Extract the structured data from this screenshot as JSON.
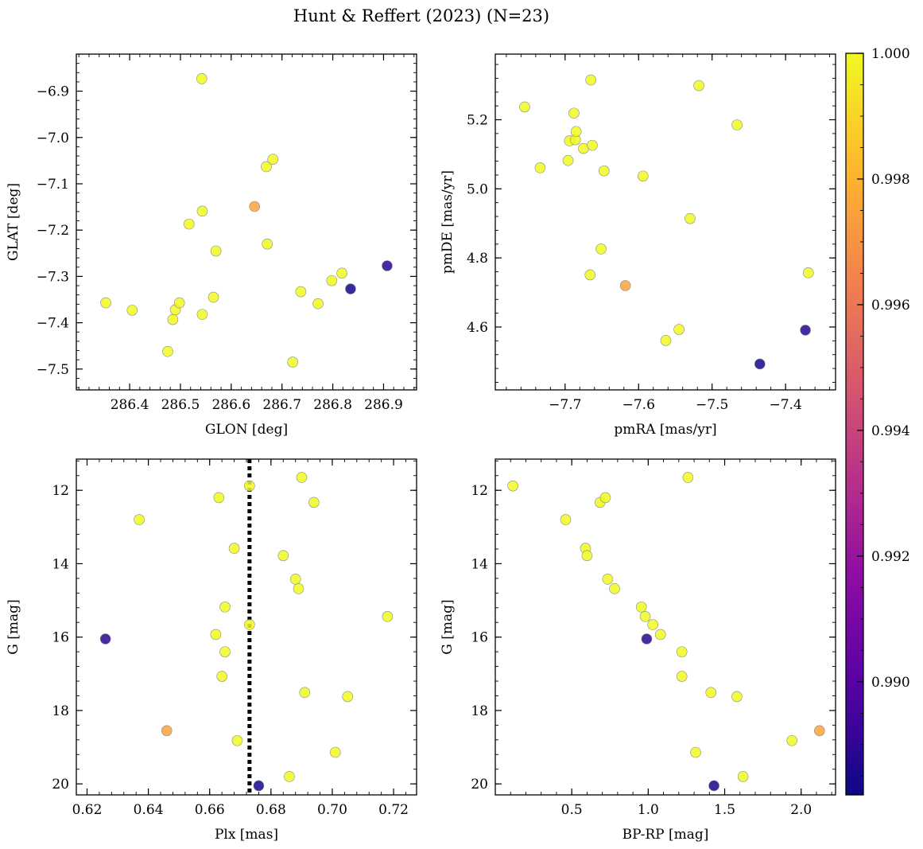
{
  "figure_title": "Hunt & Reffert (2023) (N=23)",
  "colorbar": {
    "range": [
      0.9882,
      1.0
    ],
    "ticks": [
      0.99,
      0.992,
      0.994,
      0.996,
      0.998,
      1.0
    ],
    "tick_labels": [
      "0.990",
      "0.992",
      "0.994",
      "0.996",
      "0.998",
      "1.000"
    ],
    "colormap": "plasma"
  },
  "chart_data": [
    {
      "id": "glon-glat",
      "type": "scatter",
      "xlabel": "GLON [deg]",
      "ylabel": "GLAT [deg]",
      "xlim": [
        286.295,
        286.965
      ],
      "ylim": [
        -7.545,
        -6.82
      ],
      "inverted_y": false,
      "xticks": [
        286.4,
        286.5,
        286.6,
        286.7,
        286.8,
        286.9
      ],
      "xtick_labels": [
        "286.4",
        "286.5",
        "286.6",
        "286.7",
        "286.8",
        "286.9"
      ],
      "xminor": 0.02,
      "yticks": [
        -7.5,
        -7.4,
        -7.3,
        -7.2,
        -7.1,
        -7.0,
        -6.9
      ],
      "ytick_labels": [
        "−7.5",
        "−7.4",
        "−7.3",
        "−7.2",
        "−7.1",
        "−7.0",
        "−6.9"
      ],
      "yminor": 0.02,
      "x": [
        286.353,
        286.405,
        286.475,
        286.485,
        286.49,
        286.498,
        286.517,
        286.542,
        286.543,
        286.543,
        286.565,
        286.57,
        286.646,
        286.669,
        286.671,
        286.682,
        286.721,
        286.737,
        286.771,
        286.798,
        286.818,
        286.835,
        286.907
      ],
      "y": [
        -7.357,
        -7.373,
        -7.462,
        -7.393,
        -7.372,
        -7.357,
        -7.187,
        -6.873,
        -7.159,
        -7.382,
        -7.345,
        -7.245,
        -7.149,
        -7.063,
        -7.23,
        -7.047,
        -7.485,
        -7.333,
        -7.359,
        -7.309,
        -7.293,
        -7.327,
        -7.277
      ],
      "prob": [
        1.0,
        1.0,
        1.0,
        1.0,
        1.0,
        1.0,
        1.0,
        1.0,
        1.0,
        1.0,
        1.0,
        1.0,
        0.9975,
        1.0,
        1.0,
        1.0,
        1.0,
        1.0,
        1.0,
        1.0,
        1.0,
        0.9884,
        0.9888
      ]
    },
    {
      "id": "pmra-pmde",
      "type": "scatter",
      "xlabel": "pmRA [mas/yr]",
      "ylabel": "pmDE [mas/yr]",
      "xlim": [
        -7.795,
        -7.332
      ],
      "ylim": [
        4.418,
        5.39
      ],
      "inverted_y": false,
      "xticks": [
        -7.7,
        -7.6,
        -7.5,
        -7.4
      ],
      "xtick_labels": [
        "−7.7",
        "−7.6",
        "−7.5",
        "−7.4"
      ],
      "xminor": 0.02,
      "yticks": [
        4.6,
        4.8,
        5.0,
        5.2
      ],
      "ytick_labels": [
        "4.6",
        "4.8",
        "5.0",
        "5.2"
      ],
      "yminor": 0.04,
      "x": [
        -7.755,
        -7.734,
        -7.696,
        -7.694,
        -7.688,
        -7.686,
        -7.685,
        -7.675,
        -7.666,
        -7.665,
        -7.663,
        -7.651,
        -7.647,
        -7.618,
        -7.594,
        -7.563,
        -7.545,
        -7.53,
        -7.518,
        -7.466,
        -7.435,
        -7.373,
        -7.369
      ],
      "y": [
        5.237,
        5.061,
        5.082,
        5.139,
        5.219,
        5.142,
        5.166,
        5.117,
        4.751,
        5.315,
        5.126,
        4.826,
        5.052,
        4.72,
        5.037,
        4.561,
        4.593,
        4.914,
        5.299,
        5.185,
        4.493,
        4.591,
        4.757
      ],
      "prob": [
        1.0,
        1.0,
        1.0,
        1.0,
        1.0,
        1.0,
        1.0,
        1.0,
        1.0,
        1.0,
        1.0,
        1.0,
        1.0,
        0.9975,
        1.0,
        1.0,
        1.0,
        1.0,
        1.0,
        1.0,
        0.9884,
        0.9888,
        1.0
      ]
    },
    {
      "id": "plx-g",
      "type": "scatter",
      "xlabel": "Plx [mas]",
      "ylabel": "G [mag]",
      "xlim": [
        0.6165,
        0.7275
      ],
      "ylim": [
        11.15,
        20.3
      ],
      "inverted_y": true,
      "xticks": [
        0.62,
        0.64,
        0.66,
        0.68,
        0.7,
        0.72
      ],
      "xtick_labels": [
        "0.62",
        "0.64",
        "0.66",
        "0.68",
        "0.70",
        "0.72"
      ],
      "xminor": 0.004,
      "yticks": [
        12,
        14,
        16,
        18,
        20
      ],
      "ytick_labels": [
        "12",
        "14",
        "16",
        "18",
        "20"
      ],
      "yminor": 0.4,
      "vline": 0.673,
      "x": [
        0.626,
        0.637,
        0.646,
        0.662,
        0.663,
        0.664,
        0.665,
        0.665,
        0.668,
        0.669,
        0.673,
        0.673,
        0.676,
        0.684,
        0.686,
        0.688,
        0.689,
        0.69,
        0.691,
        0.694,
        0.701,
        0.705,
        0.718
      ],
      "y": [
        16.05,
        12.8,
        18.55,
        15.93,
        12.2,
        17.07,
        16.4,
        15.18,
        13.58,
        18.82,
        11.88,
        15.66,
        20.05,
        13.78,
        19.8,
        14.42,
        14.68,
        11.65,
        17.51,
        12.33,
        19.14,
        17.62,
        15.44
      ],
      "prob": [
        0.9888,
        1.0,
        0.9975,
        1.0,
        1.0,
        1.0,
        1.0,
        1.0,
        1.0,
        1.0,
        1.0,
        1.0,
        0.9884,
        1.0,
        1.0,
        1.0,
        1.0,
        1.0,
        1.0,
        1.0,
        1.0,
        1.0,
        1.0
      ]
    },
    {
      "id": "bprp-g",
      "type": "scatter",
      "xlabel": "BP-RP [mag]",
      "ylabel": "G [mag]",
      "xlim": [
        0.0,
        2.225
      ],
      "ylim": [
        11.15,
        20.3
      ],
      "inverted_y": true,
      "xticks": [
        0.5,
        1.0,
        1.5,
        2.0
      ],
      "xtick_labels": [
        "0.5",
        "1.0",
        "1.5",
        "2.0"
      ],
      "xminor": 0.1,
      "yticks": [
        12,
        14,
        16,
        18,
        20
      ],
      "ytick_labels": [
        "12",
        "14",
        "16",
        "18",
        "20"
      ],
      "yminor": 0.4,
      "x": [
        0.115,
        0.46,
        0.59,
        0.6,
        0.685,
        0.72,
        0.735,
        0.78,
        0.955,
        0.98,
        0.99,
        1.03,
        1.08,
        1.22,
        1.22,
        1.26,
        1.31,
        1.41,
        1.43,
        1.58,
        1.62,
        1.94,
        2.12
      ],
      "y": [
        11.88,
        12.8,
        13.58,
        13.78,
        12.33,
        12.2,
        14.42,
        14.68,
        15.18,
        15.44,
        16.05,
        15.66,
        15.93,
        16.4,
        17.07,
        11.65,
        19.14,
        17.51,
        20.05,
        17.62,
        19.8,
        18.82,
        18.55
      ],
      "prob": [
        1.0,
        1.0,
        1.0,
        1.0,
        1.0,
        1.0,
        1.0,
        1.0,
        1.0,
        1.0,
        0.9888,
        1.0,
        1.0,
        1.0,
        1.0,
        1.0,
        1.0,
        1.0,
        0.9884,
        1.0,
        1.0,
        1.0,
        0.9975
      ]
    }
  ]
}
